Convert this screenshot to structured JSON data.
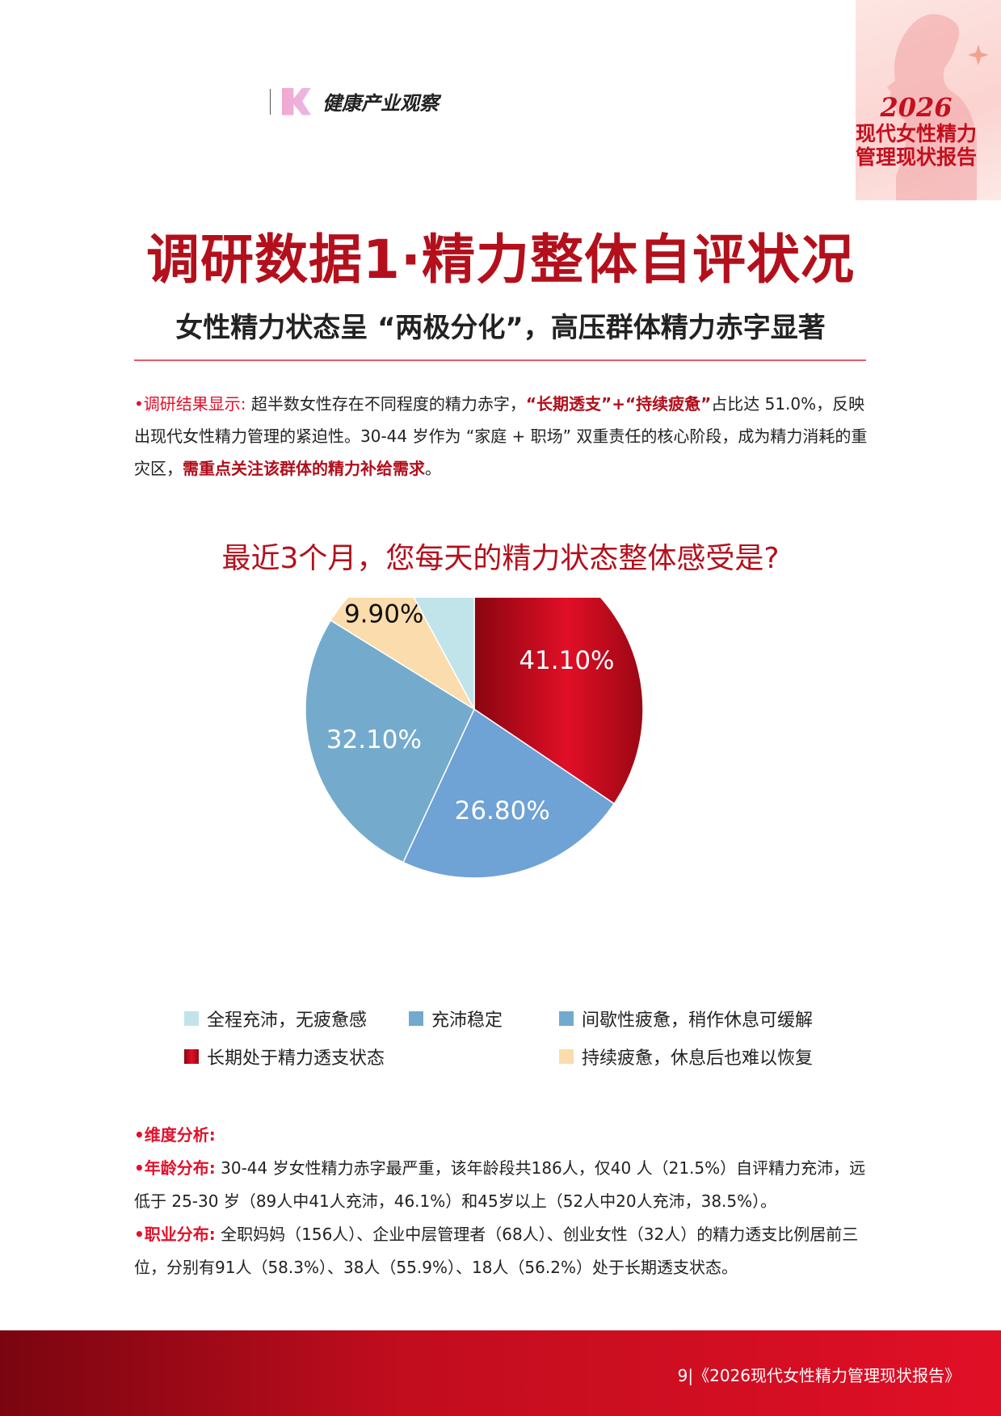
{
  "header": {
    "brand": "健康产业观察",
    "corner_year": "2026",
    "corner_line1": "现代女性精力",
    "corner_line2": "管理现状报告"
  },
  "title": "调研数据1·精力整体自评状况",
  "subtitle": "女性精力状态呈 “两极分化”，高压群体精力赤字显著",
  "findings": {
    "label": "•调研结果显示:",
    "t1": " 超半数女性存在不同程度的精力赤字，",
    "h1": "“长期透支”+“持续疲惫”",
    "t2": "占比达 51.0%，反映出现代女性精力管理的紧迫性。30-44 岁作为 “家庭 + 职场” 双重责任的核心阶段，成为精力消耗的重灾区，",
    "h2": "需重点关注该群体的精力补给需求",
    "t3": "。"
  },
  "chart_data": {
    "type": "pie",
    "title": "最近3个月，您每天的精力状态整体感受是?",
    "legend_position": "bottom",
    "slices": [
      {
        "name": "长期处于精力透支状态",
        "value": 41.1,
        "label": "41.10%",
        "color": "#c8101f"
      },
      {
        "name": "充沛稳定",
        "value": 26.8,
        "label": "26.80%",
        "color": "#6fa2d5"
      },
      {
        "name": "间歇性疲惫，稍作休息可缓解",
        "value": 32.1,
        "label": "32.10%",
        "color": "#74abcd"
      },
      {
        "name": "持续疲惫，休息后也难以恢复",
        "value": 9.9,
        "label": "9.90%",
        "color": "#fbdcac"
      },
      {
        "name": "全程充沛，无疲惫感",
        "value": 9.4,
        "label": "9.40%",
        "color": "#c0e4ea"
      }
    ]
  },
  "legend": [
    "全程充沛，无疲惫感",
    "充沛稳定",
    "间歇性疲惫，稍作休息可缓解",
    "长期处于精力透支状态",
    "持续疲惫，休息后也难以恢复"
  ],
  "analysis": {
    "heading": "•维度分析:",
    "age_label": "•年龄分布:",
    "age_text": " 30-44 岁女性精力赤字最严重，该年龄段共186人，仅40 人（21.5%）自评精力充沛，远低于 25-30 岁（89人中41人充沛，46.1%）和45岁以上（52人中20人充沛，38.5%）。",
    "job_label": "•职业分布:",
    "job_text": " 全职妈妈（156人）、企业中层管理者（68人）、创业女性（32人）的精力透支比例居前三位，分别有91人（58.3%）、38人（55.9%）、18人（56.2%）处于长期透支状态。"
  },
  "footer": {
    "page": "9",
    "report": "|《2026现代女性精力管理现状报告》"
  }
}
